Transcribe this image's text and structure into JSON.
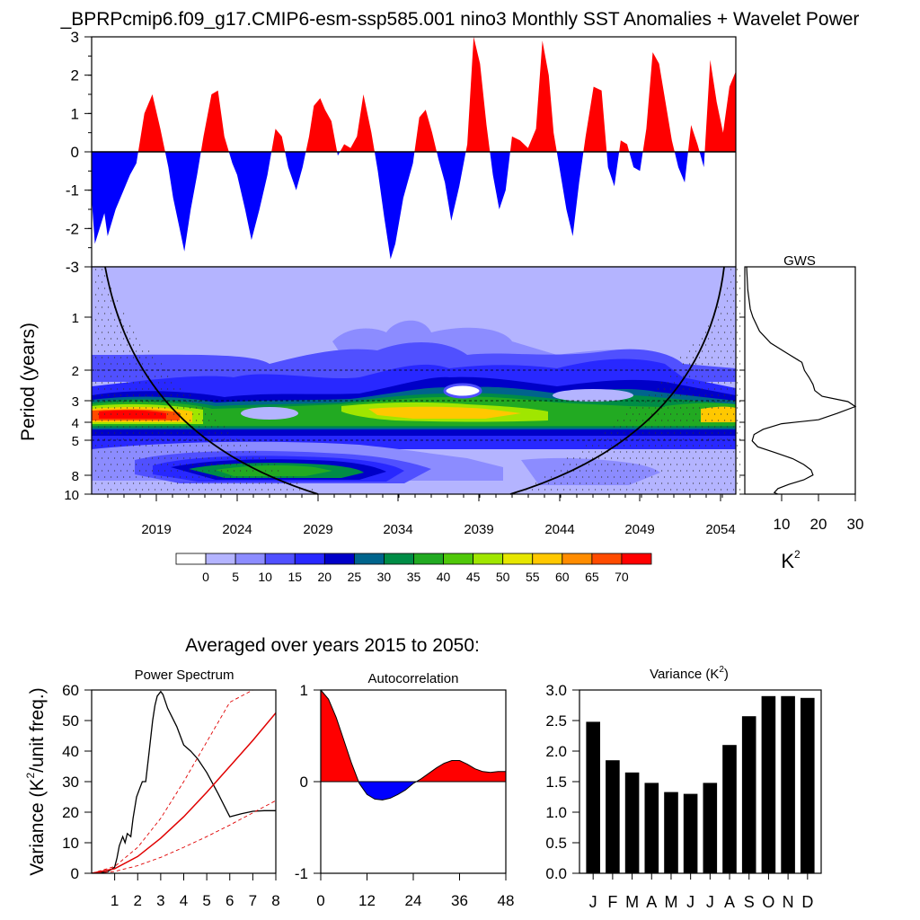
{
  "title": "_BPRPcmip6.f09_g17.CMIP6-esm-ssp585.001 nino3 Monthly SST Anomalies + Wavelet Power",
  "subtitle": "Averaged over years 2015 to 2050:",
  "colors": {
    "positive": "#ff0000",
    "negative": "#0000ff",
    "black": "#000000",
    "red_line": "#e00000"
  },
  "chart_data": [
    {
      "id": "anomalies",
      "type": "area",
      "title": "",
      "ylim": [
        -3,
        3
      ],
      "yticks": [
        "3",
        "2",
        "1",
        "0",
        "-1",
        "-2",
        "-3"
      ],
      "xlim": [
        2015,
        2055.3
      ],
      "x": [
        2015.0,
        2015.2,
        2015.5,
        2015.8,
        2016.0,
        2016.5,
        2017.0,
        2017.4,
        2017.8,
        2018.3,
        2018.8,
        2019.3,
        2019.8,
        2020.1,
        2020.5,
        2020.8,
        2021.2,
        2021.6,
        2022.0,
        2022.5,
        2022.9,
        2023.3,
        2023.8,
        2024.1,
        2024.6,
        2025.0,
        2025.5,
        2026.0,
        2026.5,
        2026.9,
        2027.3,
        2027.8,
        2028.2,
        2028.6,
        2028.9,
        2029.3,
        2029.6,
        2030.0,
        2030.4,
        2030.8,
        2031.2,
        2031.6,
        2032.0,
        2032.5,
        2032.9,
        2033.3,
        2033.7,
        2034.0,
        2034.5,
        2035.1,
        2035.5,
        2035.9,
        2036.3,
        2036.7,
        2037.1,
        2037.5,
        2038.0,
        2038.5,
        2038.9,
        2039.3,
        2039.7,
        2040.1,
        2040.5,
        2040.9,
        2041.3,
        2041.8,
        2042.3,
        2042.8,
        2043.2,
        2043.6,
        2043.9,
        2044.3,
        2044.7,
        2045.1,
        2045.5,
        2045.9,
        2046.4,
        2046.9,
        2047.3,
        2047.7,
        2048.1,
        2048.5,
        2048.9,
        2049.3,
        2049.7,
        2050.1,
        2050.5,
        2050.9,
        2051.3,
        2051.7,
        2052.1,
        2052.5,
        2052.9,
        2053.3,
        2053.7,
        2054.1,
        2054.5,
        2054.9,
        2055.3
      ],
      "values": [
        -1.2,
        -2.4,
        -2.0,
        -1.6,
        -2.2,
        -1.5,
        -1.0,
        -0.6,
        -0.3,
        1.0,
        1.5,
        0.6,
        -0.4,
        -1.2,
        -2.0,
        -2.6,
        -1.5,
        -0.6,
        0.4,
        1.5,
        1.6,
        0.4,
        -0.3,
        -0.6,
        -1.5,
        -2.3,
        -1.5,
        -0.6,
        0.6,
        0.4,
        -0.4,
        -1.0,
        -0.4,
        0.4,
        1.2,
        1.4,
        1.1,
        0.8,
        -0.1,
        0.2,
        0.1,
        0.4,
        1.5,
        0.5,
        -0.5,
        -1.7,
        -2.8,
        -2.4,
        -1.2,
        -0.3,
        0.9,
        1.1,
        0.5,
        -0.2,
        -0.8,
        -1.8,
        -0.9,
        0.2,
        3.0,
        2.3,
        0.7,
        -0.6,
        -1.5,
        -1.0,
        0.4,
        0.3,
        0.1,
        0.6,
        2.9,
        2.0,
        0.5,
        -0.5,
        -1.5,
        -2.2,
        -0.8,
        0.4,
        1.7,
        1.6,
        -0.4,
        -0.9,
        0.3,
        0.2,
        -0.4,
        -0.5,
        0.6,
        2.6,
        2.3,
        1.3,
        0.3,
        -0.4,
        -0.8,
        0.7,
        0.2,
        -0.4,
        2.4,
        1.3,
        0.5,
        1.7,
        2.1
      ]
    },
    {
      "id": "wavelet",
      "type": "heatmap",
      "ylabel": "Period (years)",
      "yticks": [
        "1",
        "2",
        "3",
        "4",
        "5",
        "8",
        "10"
      ],
      "xticks": [
        "2019",
        "2024",
        "2029",
        "2034",
        "2039",
        "2044",
        "2049",
        "2054"
      ],
      "colorbar_labels": [
        "0",
        "5",
        "10",
        "15",
        "20",
        "25",
        "30",
        "35",
        "40",
        "45",
        "50",
        "55",
        "60",
        "65",
        "70"
      ],
      "colorbar_colors": [
        "#ffffff",
        "#b4b4ff",
        "#8c8cff",
        "#5050ff",
        "#2828ff",
        "#0000c8",
        "#00648c",
        "#008c46",
        "#22aa22",
        "#50c80a",
        "#a0e600",
        "#e6e600",
        "#ffc800",
        "#ff8c00",
        "#ff4b00",
        "#ff0000"
      ]
    },
    {
      "id": "gws",
      "type": "line",
      "title": "GWS",
      "xlabel": "K",
      "xlabel_sup": "2",
      "xticks": [
        "10",
        "20",
        "30"
      ],
      "xlim": [
        0,
        30
      ],
      "period": [
        0.5,
        0.7,
        0.9,
        1.0,
        1.2,
        1.4,
        1.6,
        1.8,
        2.0,
        2.2,
        2.4,
        2.6,
        2.8,
        3.0,
        3.2,
        3.5,
        3.8,
        4.0,
        4.3,
        4.6,
        5.0,
        5.4,
        5.8,
        6.3,
        6.8,
        7.3,
        7.8,
        8.3,
        8.8,
        9.3,
        9.8,
        10.2
      ],
      "values": [
        0.5,
        0.8,
        1.5,
        2.2,
        4.0,
        7.0,
        11.5,
        15.5,
        16.2,
        17.5,
        18.5,
        19.0,
        21.0,
        28.0,
        30.0,
        25.0,
        20.0,
        10.0,
        5.0,
        2.5,
        2.0,
        3.5,
        8.0,
        13.0,
        16.0,
        18.0,
        18.5,
        16.0,
        12.0,
        9.0,
        8.0,
        9.0
      ]
    },
    {
      "id": "power_spectrum",
      "type": "line",
      "title": "Power Spectrum",
      "ylabel": "Variance (K",
      "ylabel_sup": "2",
      "ylabel_tail": "/unit freq.)",
      "xlim": [
        0,
        8
      ],
      "ylim": [
        0,
        60
      ],
      "xticks": [
        "1",
        "2",
        "3",
        "4",
        "5",
        "6",
        "7",
        "8"
      ],
      "yticks": [
        "0",
        "10",
        "20",
        "30",
        "40",
        "50",
        "60"
      ],
      "series": [
        {
          "x": [
            0.0,
            0.4,
            0.7,
            1.0,
            1.1,
            1.2,
            1.35,
            1.45,
            1.55,
            1.7,
            1.8,
            1.95,
            2.1,
            2.2,
            2.35,
            2.5,
            2.65,
            2.75,
            2.85,
            3.0,
            3.1,
            3.3,
            3.5,
            3.7,
            3.9,
            4.0,
            4.3,
            4.6,
            5.0,
            5.5,
            6.0,
            6.5,
            7.0,
            7.5,
            8.0
          ],
          "values": [
            0.0,
            0.2,
            0.5,
            2.0,
            5.0,
            9.0,
            12.0,
            10.0,
            13.0,
            12.0,
            18.0,
            25.0,
            28.0,
            30.0,
            30.0,
            40.0,
            50.0,
            55.0,
            58.0,
            59.5,
            58.5,
            54.0,
            51.0,
            48.0,
            44.0,
            42.0,
            40.0,
            37.5,
            33.0,
            26.0,
            18.5,
            19.5,
            20.3,
            20.5,
            20.5
          ]
        },
        {
          "x": [
            0,
            1,
            2,
            3,
            4,
            5,
            6,
            7,
            8
          ],
          "values": [
            0,
            1.5,
            5.5,
            11.5,
            18.5,
            26.5,
            35,
            43.5,
            52.5
          ]
        },
        {
          "x": [
            0,
            1,
            2,
            3,
            4,
            5,
            6,
            7,
            8
          ],
          "values": [
            0,
            2.2,
            8.5,
            18,
            30,
            43,
            56,
            60,
            60
          ]
        },
        {
          "x": [
            0,
            1,
            2,
            3,
            4,
            5,
            6,
            7,
            8
          ],
          "values": [
            0,
            0.6,
            2.5,
            5.2,
            8.5,
            12,
            15.8,
            19.8,
            23.8
          ]
        }
      ]
    },
    {
      "id": "autocorrelation",
      "type": "area",
      "title": "Autocorrelation",
      "xlim": [
        0,
        48
      ],
      "ylim": [
        -1,
        1
      ],
      "xticks": [
        "0",
        "12",
        "24",
        "36",
        "48"
      ],
      "yticks": [
        "1",
        "0",
        "-1"
      ],
      "x": [
        0,
        2,
        4,
        6,
        8,
        10,
        12,
        14,
        16,
        18,
        20,
        22,
        24,
        26,
        28,
        30,
        32,
        34,
        36,
        38,
        40,
        42,
        44,
        46,
        48
      ],
      "values": [
        1.0,
        0.9,
        0.7,
        0.45,
        0.2,
        -0.02,
        -0.14,
        -0.19,
        -0.2,
        -0.18,
        -0.14,
        -0.09,
        -0.02,
        0.03,
        0.09,
        0.15,
        0.2,
        0.23,
        0.23,
        0.19,
        0.14,
        0.11,
        0.1,
        0.11,
        0.11
      ]
    },
    {
      "id": "variance",
      "type": "bar",
      "title": "Variance (K",
      "title_sup": "2",
      "title_tail": ")",
      "categories": [
        "J",
        "F",
        "M",
        "A",
        "M",
        "J",
        "J",
        "A",
        "S",
        "O",
        "N",
        "D"
      ],
      "values": [
        2.48,
        1.85,
        1.65,
        1.48,
        1.33,
        1.3,
        1.48,
        2.1,
        2.57,
        2.9,
        2.9,
        2.87
      ],
      "ylim": [
        0,
        3
      ],
      "yticks": [
        "0.0",
        "0.5",
        "1.0",
        "1.5",
        "2.0",
        "2.5",
        "3.0"
      ]
    }
  ]
}
